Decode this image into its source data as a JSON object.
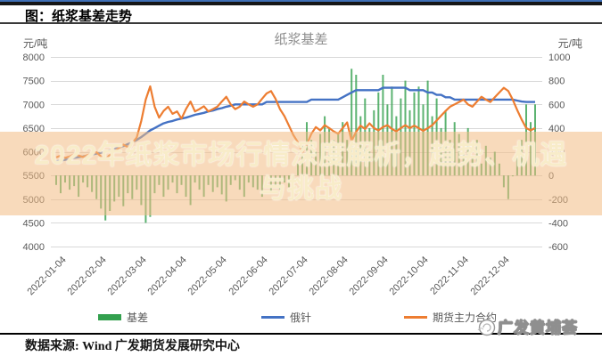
{
  "page": {
    "figure_title": "图：纸浆基差走势",
    "source_text": "数据来源: Wind  广发期货发展研究中心",
    "logo_text": "广发黄埔荟"
  },
  "watermark": {
    "line1": "2022年纸浆市场行情深度解析，趋势、机遇",
    "line2": "与挑战",
    "band_color": "rgba(243,188,131,0.55)"
  },
  "chart_data": {
    "type": "bar+line",
    "title": "纸浆基差",
    "left_axis": {
      "unit": "元/吨",
      "min": 4000,
      "max": 8000,
      "ticks": [
        8000,
        7500,
        7000,
        6500,
        6000,
        5500,
        5000,
        4500,
        4000
      ]
    },
    "right_axis": {
      "unit": "元/吨",
      "min": -600,
      "max": 1000,
      "ticks": [
        1000,
        800,
        600,
        400,
        200,
        0,
        -200,
        -400,
        -600
      ]
    },
    "x_ticks": [
      "2022-01-04",
      "2022-02-04",
      "2022-03-04",
      "2022-04-04",
      "2022-05-04",
      "2022-06-04",
      "2022-07-04",
      "2022-08-04",
      "2022-09-04",
      "2022-10-04",
      "2022-11-04",
      "2022-12-04"
    ],
    "grid": true,
    "legend_position": "bottom",
    "legend": [
      {
        "name": "基差",
        "type": "bar",
        "color": "#33a04e",
        "axis": "right"
      },
      {
        "name": "俄针",
        "type": "line",
        "color": "#4472c4",
        "axis": "left"
      },
      {
        "name": "期货主力合约",
        "type": "line",
        "color": "#ed7d31",
        "axis": "left"
      }
    ],
    "sampling_note": "108 points, ~9 per month, Jan-Dec 2022",
    "series": [
      {
        "name": "基差",
        "axis": "right",
        "values": [
          -80,
          -150,
          -60,
          -120,
          -90,
          -180,
          -60,
          -100,
          -140,
          -200,
          -280,
          -380,
          -300,
          -220,
          -180,
          -260,
          -150,
          -200,
          -120,
          -250,
          -400,
          -350,
          -150,
          -80,
          -180,
          -120,
          -60,
          -150,
          -80,
          -180,
          -250,
          -60,
          -120,
          -180,
          -80,
          -140,
          -100,
          -160,
          -220,
          -80,
          -40,
          -120,
          -180,
          -60,
          -100,
          -120,
          -180,
          -100,
          -150,
          -80,
          -120,
          -60,
          -100,
          -40,
          100,
          250,
          450,
          300,
          200,
          350,
          500,
          400,
          300,
          350,
          450,
          300,
          900,
          850,
          500,
          650,
          400,
          550,
          700,
          850,
          600,
          750,
          500,
          650,
          800,
          550,
          700,
          750,
          600,
          800,
          500,
          650,
          400,
          550,
          300,
          450,
          350,
          200,
          400,
          150,
          300,
          100,
          250,
          150,
          200,
          100,
          -100,
          -200,
          0,
          150,
          300,
          600,
          450,
          600
        ]
      },
      {
        "name": "俄针",
        "axis": "left",
        "values": [
          5800,
          5810,
          5830,
          5850,
          5870,
          5890,
          5900,
          5920,
          5940,
          5960,
          5980,
          6000,
          6030,
          6060,
          6090,
          6120,
          6160,
          6200,
          6250,
          6310,
          6380,
          6450,
          6500,
          6550,
          6600,
          6630,
          6650,
          6680,
          6700,
          6720,
          6750,
          6780,
          6800,
          6820,
          6850,
          6870,
          6900,
          6920,
          6950,
          6970,
          7000,
          7000,
          7000,
          7000,
          7000,
          7000,
          7000,
          7050,
          7050,
          7050,
          7050,
          7050,
          7050,
          7050,
          7050,
          7050,
          7050,
          7100,
          7100,
          7100,
          7100,
          7100,
          7100,
          7100,
          7150,
          7200,
          7250,
          7300,
          7300,
          7300,
          7300,
          7300,
          7300,
          7350,
          7350,
          7350,
          7350,
          7350,
          7350,
          7300,
          7300,
          7300,
          7300,
          7250,
          7250,
          7200,
          7200,
          7150,
          7150,
          7100,
          7100,
          7100,
          7100,
          7100,
          7100,
          7100,
          7100,
          7100,
          7100,
          7100,
          7100,
          7100,
          7100,
          7080,
          7060,
          7050,
          7050,
          7050
        ]
      },
      {
        "name": "期货主力合约",
        "axis": "left",
        "values": [
          5880,
          5920,
          5870,
          5900,
          5950,
          5920,
          5890,
          5930,
          5960,
          5990,
          5900,
          5850,
          5930,
          6010,
          6080,
          6150,
          6100,
          6180,
          6300,
          6650,
          7100,
          7380,
          6950,
          6720,
          6860,
          6950,
          6800,
          6850,
          6700,
          6900,
          7060,
          6850,
          6900,
          6960,
          6850,
          6900,
          6950,
          7060,
          7160,
          7000,
          6900,
          6950,
          7060,
          7000,
          6950,
          7000,
          7120,
          7230,
          7280,
          7120,
          6900,
          6750,
          6550,
          6350,
          6200,
          5980,
          6150,
          6380,
          6520,
          6450,
          6560,
          6500,
          6430,
          6380,
          6500,
          6620,
          6230,
          6420,
          6550,
          6480,
          6600,
          6500,
          6450,
          6520,
          6560,
          6480,
          6430,
          6500,
          6560,
          6500,
          6550,
          6500,
          6440,
          6500,
          6560,
          6660,
          6760,
          6860,
          6950,
          7000,
          7050,
          7100,
          7000,
          6950,
          7060,
          7160,
          7100,
          7050,
          7150,
          7250,
          7350,
          7280,
          7100,
          6880,
          6680,
          6500,
          6450,
          6500
        ]
      }
    ]
  }
}
